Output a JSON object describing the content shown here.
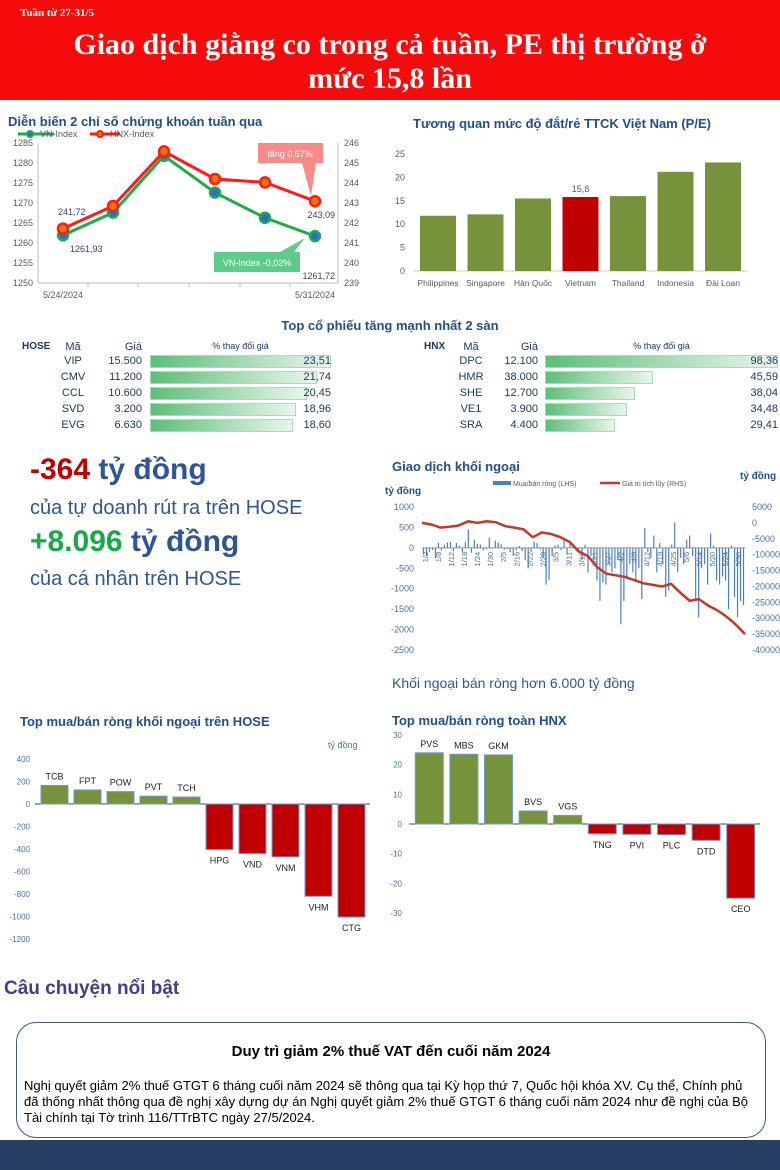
{
  "header": {
    "week": "Tuần từ 27-31/5",
    "title_line1": "Giao dịch giằng co trong cả tuần, PE thị trường ở",
    "title_line2": "mức 15,8 lần",
    "color": "#f50b0b"
  },
  "chart_data": [
    {
      "type": "line",
      "title": "Diễn biến 2 chỉ số chứng khoán tuần qua",
      "x_labels": [
        "5/24/2024",
        "",
        "",
        "",
        "",
        "5/31/2024"
      ],
      "series": [
        {
          "name": "VN-Index",
          "axis": "left",
          "color": "#1faa4b",
          "values": [
            1261.93,
            1267.6,
            1281.8,
            1272.6,
            1266.3,
            1261.72
          ]
        },
        {
          "name": "HNX-Index",
          "axis": "right",
          "color": "#ff1a1a",
          "values": [
            241.72,
            242.85,
            245.58,
            244.2,
            244.03,
            243.09
          ]
        }
      ],
      "ylim_left": [
        1250,
        1285
      ],
      "yticks_left": [
        1250,
        1255,
        1260,
        1265,
        1270,
        1275,
        1280,
        1285
      ],
      "ylim_right": [
        239,
        246
      ],
      "yticks_right": [
        239,
        240,
        241,
        242,
        243,
        244,
        245,
        246
      ],
      "data_labels": {
        "hnx_first": "241,72",
        "vn_first": "1261,93",
        "hnx_last": "243,09",
        "vn_last": "1261,72"
      },
      "annotations": {
        "hnx": "tăng 0,57%",
        "vn": "VN-Index -0,02%"
      },
      "legend": "top-left"
    },
    {
      "type": "bar",
      "title": "Tương quan mức độ đắt/rẻ TTCK Việt Nam (P/E)",
      "categories": [
        "Philippines",
        "Singapore",
        "Hàn Quốc",
        "Vietnam",
        "Thailand",
        "Indonesia",
        "Đài Loan"
      ],
      "values": [
        11.8,
        12.1,
        15.5,
        15.8,
        16.0,
        21.2,
        23.2
      ],
      "highlight": "Vietnam",
      "highlight_label": "15,8",
      "ylim": [
        0,
        25
      ],
      "yticks": [
        0,
        5,
        10,
        15,
        20,
        25
      ],
      "colors": {
        "default": "#76933c",
        "highlight": "#c00000"
      }
    },
    {
      "type": "bar+line",
      "title": "Giao dịch khối ngoại",
      "ylabel_left": "tỷ đồng",
      "ylabel_right": "tỷ đồng",
      "legend": [
        "Mua/bán ròng (LHS)",
        "Giá trị tích lũy (RHS)"
      ],
      "ylim_left": [
        -2500,
        1000
      ],
      "yticks_left": [
        1000,
        500,
        0,
        -500,
        -1000,
        -1500,
        -2000,
        -2500
      ],
      "ylim_right": [
        -40000,
        5000
      ],
      "yticks_right": [
        5000,
        0,
        -5000,
        -10000,
        -15000,
        -20000,
        -25000,
        -30000,
        -35000,
        -40000
      ],
      "x_labels": [
        "1/2",
        "1/8",
        "1/12",
        "1/18",
        "1/24",
        "1/30",
        "2/5",
        "2/16",
        "2/22",
        "2/28",
        "3/5",
        "3/11",
        "3/15",
        "3/21",
        "3/27",
        "4/2",
        "4/8",
        "4/12",
        "4/19",
        "4/25",
        "5/6",
        "5/14",
        "5/20",
        "5/24",
        "5/30"
      ],
      "bars": [
        -150,
        -200,
        -100,
        -50,
        -250,
        120,
        -60,
        80,
        130,
        150,
        -80,
        120,
        50,
        -100,
        140,
        450,
        -120,
        200,
        100,
        80,
        -60,
        -40,
        250,
        -20,
        180,
        130,
        90,
        -50,
        -30,
        -100,
        -200,
        -60,
        50,
        -80,
        -300,
        -500,
        -100,
        150,
        120,
        -40,
        -250,
        -900,
        -780,
        -200,
        60,
        80,
        -50,
        200,
        -150,
        180,
        100,
        -70,
        -40,
        -300,
        80,
        -600,
        -200,
        -300,
        -800,
        -1300,
        -850,
        -900,
        -400,
        -600,
        -500,
        -300,
        -1870,
        -1300,
        -700,
        -400,
        -600,
        -800,
        -500,
        -1250,
        480,
        -100,
        -250,
        300,
        -600,
        120,
        -400,
        -1200,
        -1050,
        80,
        620,
        -600,
        -250,
        -400,
        200,
        300,
        -200,
        -1250,
        -1700,
        -500,
        -400,
        -900,
        350,
        60,
        -800,
        -900,
        -700,
        -800,
        -1500,
        50,
        -1200,
        -1700,
        -1300,
        -1400
      ],
      "cumulative": [
        0,
        -500,
        -1500,
        -1200,
        -800,
        500,
        0,
        500,
        200,
        -1000,
        -1500,
        -2000,
        -4500,
        -3000,
        -3500,
        -4500,
        -6000,
        -9000,
        -10500,
        -14000,
        -16000,
        -16500,
        -17000,
        -18000,
        -19000,
        -19500,
        -20000,
        -19200,
        -22000,
        -24500,
        -24000,
        -26000,
        -27500,
        -29500,
        -32000,
        -35000
      ],
      "colors": {
        "bars": "#4a7fc1",
        "line": "#c0392b"
      },
      "caption": "Khối ngoại bán ròng hơn 6.000 tỷ đồng"
    },
    {
      "type": "bar",
      "title": "Top mua/bán ròng khối ngoại trên HOSE",
      "ylabel": "tỷ đồng",
      "categories": [
        "TCB",
        "FPT",
        "POW",
        "PVT",
        "TCH",
        "HPG",
        "VND",
        "VNM",
        "VHM",
        "CTG"
      ],
      "values": [
        165,
        125,
        110,
        70,
        62,
        -405,
        -440,
        -470,
        -820,
        -1005
      ],
      "ylim": [
        -1200,
        400
      ],
      "yticks": [
        400,
        200,
        0,
        -200,
        -400,
        -600,
        -800,
        -1000,
        -1200
      ],
      "colors": {
        "positive": "#76933c",
        "negative": "#c00000"
      }
    },
    {
      "type": "bar",
      "title": "Top mua/bán ròng toàn HNX",
      "categories": [
        "PVS",
        "MBS",
        "GKM",
        "BVS",
        "VGS",
        "TNG",
        "PVI",
        "PLC",
        "DTD",
        "CEO"
      ],
      "values": [
        24,
        23.5,
        23.3,
        4.4,
        2.9,
        -3.3,
        -3.5,
        -3.6,
        -5.5,
        -25
      ],
      "ylim": [
        -30,
        30
      ],
      "yticks": [
        30,
        20,
        10,
        0,
        -10,
        -20,
        -30
      ],
      "colors": {
        "positive": "#76933c",
        "negative": "#c00000"
      }
    }
  ],
  "top_stocks": {
    "title": "Top cổ phiếu tăng mạnh nhất 2 sàn",
    "col_code": "Mã",
    "col_price": "Giá",
    "col_change": "% thay đổi giá",
    "hose": {
      "label": "HOSE",
      "max": 23.51,
      "rows": [
        {
          "code": "VIP",
          "price": "15.500",
          "change": "23,51",
          "value": 23.51
        },
        {
          "code": "CMV",
          "price": "11.200",
          "change": "21,74",
          "value": 21.74
        },
        {
          "code": "CCL",
          "price": "10.600",
          "change": "20,45",
          "value": 20.45
        },
        {
          "code": "SVD",
          "price": "3.200",
          "change": "18,96",
          "value": 18.96
        },
        {
          "code": "EVG",
          "price": "6.630",
          "change": "18,60",
          "value": 18.6
        }
      ]
    },
    "hnx": {
      "label": "HNX",
      "max": 98.36,
      "rows": [
        {
          "code": "DPC",
          "price": "12.100",
          "change": "98,36",
          "value": 98.36
        },
        {
          "code": "HMR",
          "price": "38.000",
          "change": "45,59",
          "value": 45.59
        },
        {
          "code": "SHE",
          "price": "12.700",
          "change": "38,04",
          "value": 38.04
        },
        {
          "code": "VE1",
          "price": "3.900",
          "change": "34,48",
          "value": 34.48
        },
        {
          "code": "SRA",
          "price": "4.400",
          "change": "29,41",
          "value": 29.41
        }
      ]
    }
  },
  "highlights": {
    "prop_value": "-364",
    "prop_unit": " tỷ đồng",
    "prop_text": "của tự doanh rút ra trên HOSE",
    "retail_value": "+8.096",
    "retail_unit": " tỷ đồng",
    "retail_text": "của cá nhân trên HOSE"
  },
  "story": {
    "heading": "Câu chuyện nổi bật",
    "title": "Duy trì giảm 2% thuế VAT đến cuối năm 2024",
    "body": "Nghị quyết giảm 2% thuế GTGT 6 tháng cuối năm 2024 sẽ thông qua tại Kỳ họp thứ 7, Quốc hội khóa XV. Cụ thể, Chính phủ đã thống nhất thông qua đề nghị xây dựng dự án Nghị quyết giảm 2% thuế GTGT 6 tháng cuối năm 2024 như đề nghị của Bộ Tài chính tại Tờ trình 116/TTrBTC ngày 27/5/2024."
  }
}
